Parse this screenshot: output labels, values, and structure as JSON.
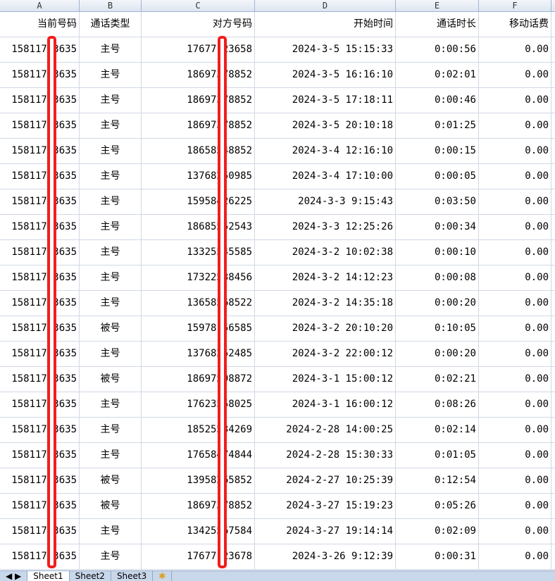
{
  "columns": [
    "A",
    "B",
    "C",
    "D",
    "E",
    "F"
  ],
  "headers": [
    "当前号码",
    "通话类型",
    "对方号码",
    "开始时间",
    "通话时长",
    "移动话费"
  ],
  "rows": [
    [
      "15811753635",
      "主号",
      "17677123658",
      "2024-3-5 15:15:33",
      "0:00:56",
      "0.00"
    ],
    [
      "15811753635",
      "主号",
      "18697378852",
      "2024-3-5 16:16:10",
      "0:02:01",
      "0.00"
    ],
    [
      "15811753635",
      "主号",
      "18697378852",
      "2024-3-5 17:18:11",
      "0:00:46",
      "0.00"
    ],
    [
      "15811753635",
      "主号",
      "18697378852",
      "2024-3-5 20:10:18",
      "0:01:25",
      "0.00"
    ],
    [
      "15811753635",
      "主号",
      "18658548852",
      "2024-3-4 12:16:10",
      "0:00:15",
      "0.00"
    ],
    [
      "15811753635",
      "主号",
      "13768250985",
      "2024-3-4 17:10:00",
      "0:00:05",
      "0.00"
    ],
    [
      "15811753635",
      "主号",
      "15958426225",
      "2024-3-3 9:15:43",
      "0:03:50",
      "0.00"
    ],
    [
      "15811753635",
      "主号",
      "18685552543",
      "2024-3-3 12:25:26",
      "0:00:34",
      "0.00"
    ],
    [
      "15811753635",
      "主号",
      "13325545585",
      "2024-3-2 10:02:38",
      "0:00:10",
      "0.00"
    ],
    [
      "15811753635",
      "主号",
      "17322538456",
      "2024-3-2 14:12:23",
      "0:00:08",
      "0.00"
    ],
    [
      "15811753635",
      "主号",
      "13658568522",
      "2024-3-2 14:35:18",
      "0:00:20",
      "0.00"
    ],
    [
      "15811753635",
      "被号",
      "15978156585",
      "2024-3-2 20:10:20",
      "0:10:05",
      "0.00"
    ],
    [
      "15811753635",
      "主号",
      "13768252485",
      "2024-3-2 22:00:12",
      "0:00:20",
      "0.00"
    ],
    [
      "15811753635",
      "被号",
      "18697598872",
      "2024-3-1 15:00:12",
      "0:02:21",
      "0.00"
    ],
    [
      "15811753635",
      "主号",
      "17623558025",
      "2024-3-1 16:00:12",
      "0:08:26",
      "0.00"
    ],
    [
      "15811753635",
      "主号",
      "18525534269",
      "2024-2-28 14:00:25",
      "0:02:14",
      "0.00"
    ],
    [
      "15811753635",
      "主号",
      "17658474844",
      "2024-2-28 15:30:33",
      "0:01:05",
      "0.00"
    ],
    [
      "15811753635",
      "被号",
      "13958265852",
      "2024-2-27 10:25:39",
      "0:12:54",
      "0.00"
    ],
    [
      "15811753635",
      "被号",
      "18697378852",
      "2024-3-27 15:19:23",
      "0:05:26",
      "0.00"
    ],
    [
      "15811753635",
      "主号",
      "13425567584",
      "2024-3-27 19:14:14",
      "0:02:09",
      "0.00"
    ],
    [
      "15811753635",
      "主号",
      "17677123678",
      "2024-3-26 9:12:39",
      "0:00:31",
      "0.00"
    ]
  ],
  "sheet_tabs": [
    "Sheet1",
    "Sheet2",
    "Sheet3"
  ],
  "active_tab": "Sheet1",
  "redaction_color": "#f21d1d"
}
